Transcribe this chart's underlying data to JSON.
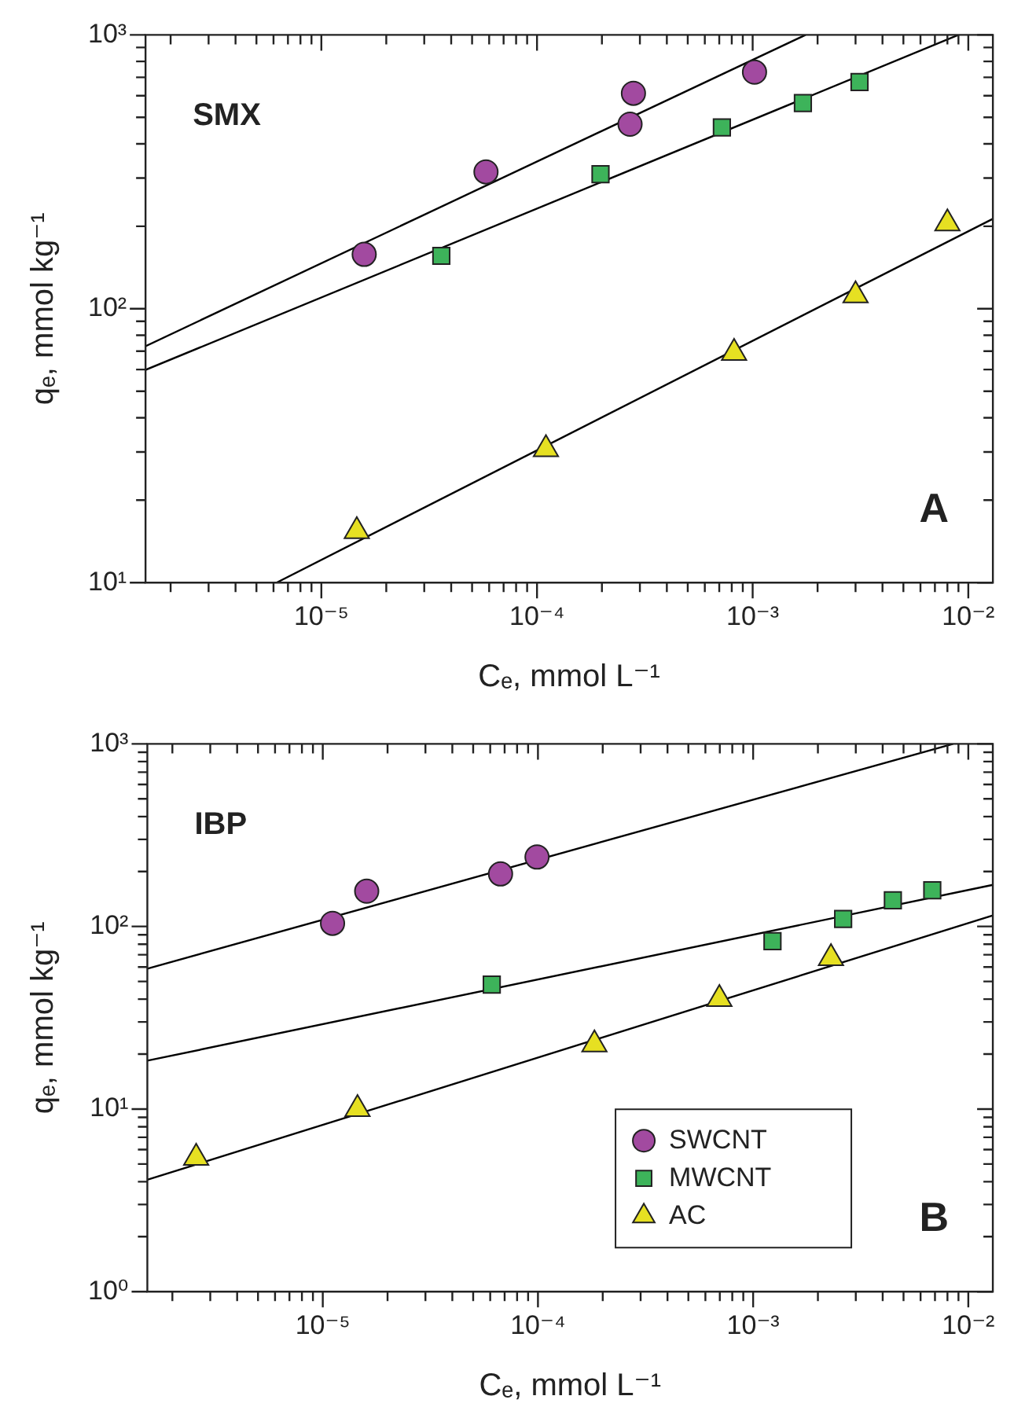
{
  "chart_data": [
    {
      "type": "scatter",
      "xlabel": "Cₑ, mmol L⁻¹",
      "ylabel": "qₑ, mmol kg⁻¹",
      "annotations": [
        "SMX",
        "A"
      ],
      "log": "xy",
      "xlim": [
        1.53e-06,
        0.013
      ],
      "ylim": [
        10,
        1000
      ],
      "xticks": [
        {
          "value": 2e-06,
          "label": null
        },
        {
          "value": 3e-06,
          "label": null
        },
        {
          "value": 4e-06,
          "label": null
        },
        {
          "value": 5e-06,
          "label": null
        },
        {
          "value": 6e-06,
          "label": null
        },
        {
          "value": 7e-06,
          "label": null
        },
        {
          "value": 8e-06,
          "label": null
        },
        {
          "value": 9e-06,
          "label": null
        },
        {
          "value": 1e-05,
          "label": "10⁻⁵"
        },
        {
          "value": 2e-05,
          "label": null
        },
        {
          "value": 3e-05,
          "label": null
        },
        {
          "value": 4e-05,
          "label": null
        },
        {
          "value": 5e-05,
          "label": null
        },
        {
          "value": 6e-05,
          "label": null
        },
        {
          "value": 7e-05,
          "label": null
        },
        {
          "value": 8e-05,
          "label": null
        },
        {
          "value": 9e-05,
          "label": null
        },
        {
          "value": 0.0001,
          "label": "10⁻⁴"
        },
        {
          "value": 0.0002,
          "label": null
        },
        {
          "value": 0.0003,
          "label": null
        },
        {
          "value": 0.0004,
          "label": null
        },
        {
          "value": 0.0005,
          "label": null
        },
        {
          "value": 0.0006,
          "label": null
        },
        {
          "value": 0.0007,
          "label": null
        },
        {
          "value": 0.0008,
          "label": null
        },
        {
          "value": 0.0009,
          "label": null
        },
        {
          "value": 0.001,
          "label": "10⁻³"
        },
        {
          "value": 0.002,
          "label": null
        },
        {
          "value": 0.003,
          "label": null
        },
        {
          "value": 0.004,
          "label": null
        },
        {
          "value": 0.005,
          "label": null
        },
        {
          "value": 0.006,
          "label": null
        },
        {
          "value": 0.007,
          "label": null
        },
        {
          "value": 0.008,
          "label": null
        },
        {
          "value": 0.009,
          "label": null
        },
        {
          "value": 0.01,
          "label": "10⁻²"
        }
      ],
      "yticks": [
        {
          "value": 10,
          "label": "10¹"
        },
        {
          "value": 20,
          "label": null
        },
        {
          "value": 30,
          "label": null
        },
        {
          "value": 40,
          "label": null
        },
        {
          "value": 50,
          "label": null
        },
        {
          "value": 60,
          "label": null
        },
        {
          "value": 70,
          "label": null
        },
        {
          "value": 80,
          "label": null
        },
        {
          "value": 90,
          "label": null
        },
        {
          "value": 100,
          "label": "10²"
        },
        {
          "value": 200,
          "label": null
        },
        {
          "value": 300,
          "label": null
        },
        {
          "value": 400,
          "label": null
        },
        {
          "value": 500,
          "label": null
        },
        {
          "value": 600,
          "label": null
        },
        {
          "value": 700,
          "label": null
        },
        {
          "value": 800,
          "label": null
        },
        {
          "value": 900,
          "label": null
        },
        {
          "value": 1000,
          "label": "10³"
        }
      ],
      "series": [
        {
          "color": "#a24aa0",
          "marker": "circle",
          "x": [
            1.58e-05,
            5.8e-05,
            0.00027,
            0.00028,
            0.00102
          ],
          "values": [
            158,
            316,
            472,
            612,
            731
          ]
        },
        {
          "color": "#3db35a",
          "marker": "square",
          "x": [
            3.6e-05,
            0.000197,
            0.00072,
            0.00171,
            0.00313
          ],
          "values": [
            156,
            310,
            459,
            564,
            673
          ]
        },
        {
          "color": "#e6e022",
          "marker": "triangle",
          "x": [
            1.46e-05,
            0.00011,
            0.00082,
            0.003,
            0.008
          ],
          "values": [
            15.4,
            30.7,
            69,
            112,
            205
          ]
        },
        {
          "type": "line",
          "color": "#000000",
          "marker": "none",
          "x": [
            1.53e-06,
            0.00176
          ],
          "values": [
            73,
            1000
          ]
        },
        {
          "type": "line",
          "color": "#000000",
          "marker": "none",
          "x": [
            1.53e-06,
            0.009
          ],
          "values": [
            59.8,
            1000
          ]
        },
        {
          "type": "line",
          "color": "#000000",
          "marker": "none",
          "x": [
            6.2e-06,
            0.013
          ],
          "values": [
            10,
            213
          ]
        }
      ]
    },
    {
      "type": "scatter",
      "xlabel": "Cₑ, mmol L⁻¹",
      "ylabel": "qₑ, mmol kg⁻¹",
      "annotations": [
        "IBP",
        "B"
      ],
      "log": "xy",
      "legend": "bottom right",
      "xlim": [
        1.53e-06,
        0.013
      ],
      "ylim": [
        1,
        1000
      ],
      "xticks": [
        {
          "value": 2e-06,
          "label": null
        },
        {
          "value": 3e-06,
          "label": null
        },
        {
          "value": 4e-06,
          "label": null
        },
        {
          "value": 5e-06,
          "label": null
        },
        {
          "value": 6e-06,
          "label": null
        },
        {
          "value": 7e-06,
          "label": null
        },
        {
          "value": 8e-06,
          "label": null
        },
        {
          "value": 9e-06,
          "label": null
        },
        {
          "value": 1e-05,
          "label": "10⁻⁵"
        },
        {
          "value": 2e-05,
          "label": null
        },
        {
          "value": 3e-05,
          "label": null
        },
        {
          "value": 4e-05,
          "label": null
        },
        {
          "value": 5e-05,
          "label": null
        },
        {
          "value": 6e-05,
          "label": null
        },
        {
          "value": 7e-05,
          "label": null
        },
        {
          "value": 8e-05,
          "label": null
        },
        {
          "value": 9e-05,
          "label": null
        },
        {
          "value": 0.0001,
          "label": "10⁻⁴"
        },
        {
          "value": 0.0002,
          "label": null
        },
        {
          "value": 0.0003,
          "label": null
        },
        {
          "value": 0.0004,
          "label": null
        },
        {
          "value": 0.0005,
          "label": null
        },
        {
          "value": 0.0006,
          "label": null
        },
        {
          "value": 0.0007,
          "label": null
        },
        {
          "value": 0.0008,
          "label": null
        },
        {
          "value": 0.0009,
          "label": null
        },
        {
          "value": 0.001,
          "label": "10⁻³"
        },
        {
          "value": 0.002,
          "label": null
        },
        {
          "value": 0.003,
          "label": null
        },
        {
          "value": 0.004,
          "label": null
        },
        {
          "value": 0.005,
          "label": null
        },
        {
          "value": 0.006,
          "label": null
        },
        {
          "value": 0.007,
          "label": null
        },
        {
          "value": 0.008,
          "label": null
        },
        {
          "value": 0.009,
          "label": null
        },
        {
          "value": 0.01,
          "label": "10⁻²"
        }
      ],
      "yticks": [
        {
          "value": 1,
          "label": "10⁰"
        },
        {
          "value": 2,
          "label": null
        },
        {
          "value": 3,
          "label": null
        },
        {
          "value": 4,
          "label": null
        },
        {
          "value": 5,
          "label": null
        },
        {
          "value": 6,
          "label": null
        },
        {
          "value": 7,
          "label": null
        },
        {
          "value": 8,
          "label": null
        },
        {
          "value": 9,
          "label": null
        },
        {
          "value": 10,
          "label": "10¹"
        },
        {
          "value": 20,
          "label": null
        },
        {
          "value": 30,
          "label": null
        },
        {
          "value": 40,
          "label": null
        },
        {
          "value": 50,
          "label": null
        },
        {
          "value": 60,
          "label": null
        },
        {
          "value": 70,
          "label": null
        },
        {
          "value": 80,
          "label": null
        },
        {
          "value": 90,
          "label": null
        },
        {
          "value": 100,
          "label": "10²"
        },
        {
          "value": 200,
          "label": null
        },
        {
          "value": 300,
          "label": null
        },
        {
          "value": 400,
          "label": null
        },
        {
          "value": 500,
          "label": null
        },
        {
          "value": 600,
          "label": null
        },
        {
          "value": 700,
          "label": null
        },
        {
          "value": 800,
          "label": null
        },
        {
          "value": 900,
          "label": null
        },
        {
          "value": 1000,
          "label": "10³"
        }
      ],
      "series": [
        {
          "name": "SWCNT",
          "color": "#a24aa0",
          "marker": "circle",
          "x": [
            1.11e-05,
            1.6e-05,
            6.7e-05,
            9.9e-05
          ],
          "values": [
            104,
            156,
            194,
            240
          ]
        },
        {
          "name": "MWCNT",
          "color": "#3db35a",
          "marker": "square",
          "x": [
            6.1e-05,
            0.00123,
            0.00262,
            0.00446,
            0.0068
          ],
          "values": [
            48,
            83,
            110,
            139,
            158
          ]
        },
        {
          "name": "AC",
          "color": "#e6e022",
          "marker": "triangle",
          "x": [
            2.58e-06,
            1.45e-05,
            0.000183,
            0.000697,
            0.0023
          ],
          "values": [
            5.4,
            10,
            22.6,
            40,
            67
          ]
        },
        {
          "type": "line",
          "color": "#000000",
          "marker": "none",
          "x": [
            1.53e-06,
            0.0085
          ],
          "values": [
            58.7,
            1000
          ]
        },
        {
          "type": "line",
          "color": "#000000",
          "marker": "none",
          "x": [
            1.53e-06,
            0.013
          ],
          "values": [
            18.4,
            169
          ]
        },
        {
          "type": "line",
          "color": "#000000",
          "marker": "none",
          "x": [
            1.53e-06,
            0.013
          ],
          "values": [
            4.1,
            115
          ]
        }
      ]
    }
  ]
}
